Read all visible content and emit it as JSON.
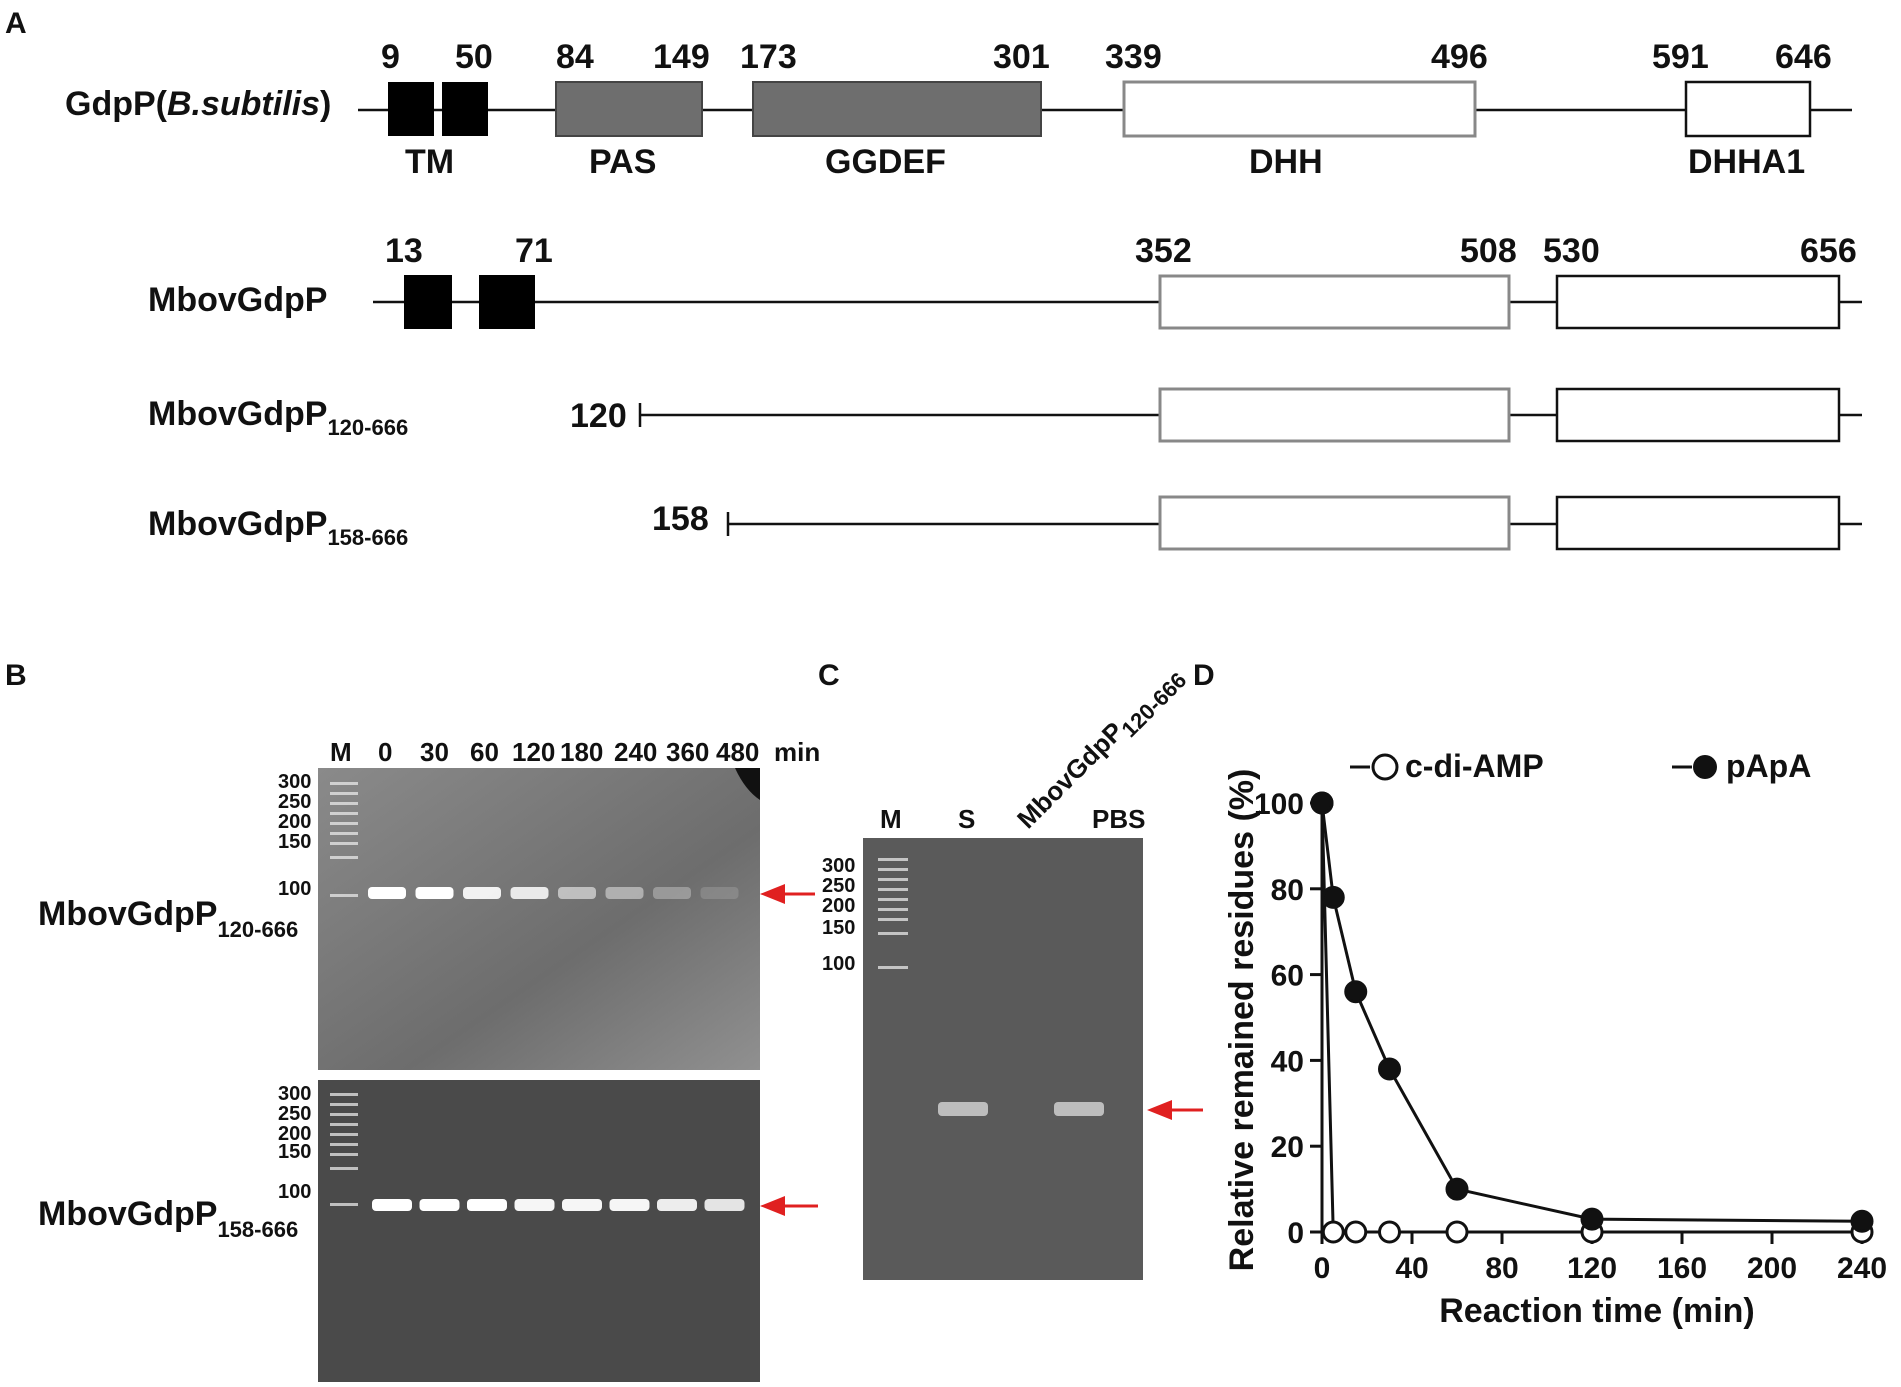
{
  "panel_labels": {
    "a": "A",
    "b": "B",
    "c": "C",
    "d": "D"
  },
  "diagram": {
    "gdpp": {
      "name": "GdpP(",
      "species": "B.subtilis",
      "close": ")",
      "numbers": [
        "9",
        "50",
        "84",
        "149",
        "173",
        "301",
        "339",
        "496",
        "591",
        "646"
      ],
      "domains": [
        "TM",
        "PAS",
        "GGDEF",
        "DHH",
        "DHHA1"
      ]
    },
    "mbov": {
      "name": "MbovGdpP",
      "numbers": [
        "13",
        "71",
        "352",
        "508",
        "530",
        "656"
      ]
    },
    "mbov120": {
      "name": "MbovGdpP",
      "sub": "120-666",
      "start": "120"
    },
    "mbov158": {
      "name": "MbovGdpP",
      "sub": "158-666",
      "start": "158"
    }
  },
  "gel_b": {
    "lanes": [
      "M",
      "0",
      "30",
      "60",
      "120",
      "180",
      "240",
      "360",
      "480",
      "min"
    ],
    "markers": [
      "300",
      "250",
      "200",
      "150",
      "100"
    ],
    "top_label": {
      "name": "MbovGdpP",
      "sub": "120-666"
    },
    "bottom_label": {
      "name": "MbovGdpP",
      "sub": "158-666"
    },
    "top_band_levels": [
      1.0,
      1.0,
      0.9,
      0.85,
      0.55,
      0.45,
      0.3,
      0.15
    ],
    "bottom_band_levels": [
      1.0,
      1.0,
      1.0,
      0.95,
      0.95,
      0.95,
      0.9,
      0.85
    ]
  },
  "gel_c": {
    "lanes": [
      "M",
      "S",
      "MbovGdpP",
      "PBS"
    ],
    "lane_sub": "120-666",
    "markers": [
      "300",
      "250",
      "200",
      "150",
      "100"
    ],
    "band_levels": [
      0,
      0.6,
      0,
      0.6
    ]
  },
  "colors": {
    "arrow": "#e02020",
    "gel_top": "#7a7a7a",
    "gel_bottom": "#4a4a4a",
    "gel_c": "#5a5a5a",
    "domain_fill": "#6e6e6e"
  },
  "chart_data": {
    "type": "line",
    "xlabel": "Reaction time (min)",
    "ylabel": "Relative remained residues (%)",
    "xlim": [
      0,
      240
    ],
    "ylim": [
      0,
      100
    ],
    "xticks": [
      0,
      40,
      80,
      120,
      160,
      200,
      240
    ],
    "yticks": [
      0,
      20,
      40,
      60,
      80,
      100
    ],
    "series": [
      {
        "name": "c-di-AMP",
        "marker": "open-circle",
        "x": [
          0,
          5,
          15,
          30,
          60,
          120,
          240
        ],
        "y": [
          100,
          0,
          0,
          0,
          0,
          0,
          0
        ]
      },
      {
        "name": "pApA",
        "marker": "filled-circle",
        "x": [
          0,
          5,
          15,
          30,
          60,
          120,
          240
        ],
        "y": [
          100,
          78,
          56,
          38,
          10,
          3,
          2.5
        ]
      }
    ]
  }
}
